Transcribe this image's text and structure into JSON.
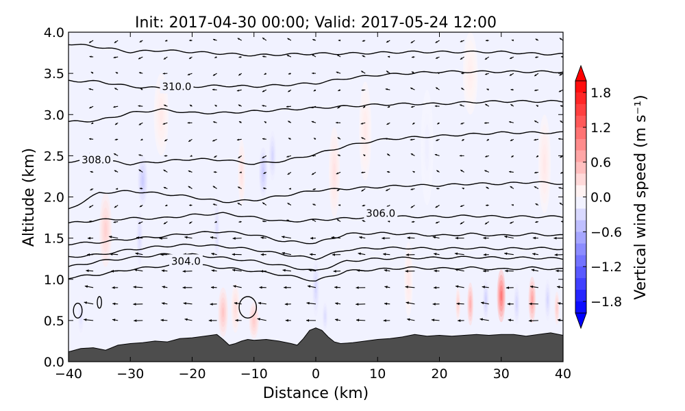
{
  "chart_data": {
    "type": "heatmap",
    "title": "Init: 2017-04-30 00:00; Valid: 2017-05-24 12:00",
    "xlabel": "Distance (km)",
    "ylabel": "Altitude (km)",
    "xlim": [
      -40,
      40
    ],
    "ylim": [
      0.0,
      4.0
    ],
    "x_ticks": [
      -40,
      -30,
      -20,
      -10,
      0,
      10,
      20,
      30,
      40
    ],
    "x_tick_labels": [
      "−40",
      "−30",
      "−20",
      "−10",
      "0",
      "10",
      "20",
      "30",
      "40"
    ],
    "y_ticks": [
      0.0,
      0.5,
      1.0,
      1.5,
      2.0,
      2.5,
      3.0,
      3.5,
      4.0
    ],
    "y_tick_labels": [
      "0.0",
      "0.5",
      "1.0",
      "1.5",
      "2.0",
      "2.5",
      "3.0",
      "3.5",
      "4.0"
    ],
    "colorbar": {
      "label": "Vertical wind speed (m s⁻¹)",
      "range": [
        -2.0,
        2.0
      ],
      "ticks": [
        -1.8,
        -1.2,
        -0.6,
        0.0,
        0.6,
        1.2,
        1.8
      ],
      "tick_labels": [
        "−1.8",
        "−1.2",
        "−0.6",
        "0.0",
        "0.6",
        "1.2",
        "1.8"
      ],
      "colormap": "bwr",
      "extend": "both"
    },
    "colors": {
      "terrain": "#4d4d4d",
      "positive": "#ff0000",
      "negative": "#0000ff",
      "zero": "#ffffff"
    },
    "terrain": {
      "x": [
        -40,
        -38,
        -36,
        -34,
        -32,
        -30,
        -28,
        -26,
        -24,
        -22,
        -20,
        -18,
        -16,
        -15,
        -14,
        -13,
        -12,
        -11,
        -10,
        -8,
        -6,
        -4,
        -3,
        -2,
        -1,
        0,
        1,
        2,
        3,
        4,
        6,
        8,
        10,
        12,
        14,
        16,
        18,
        20,
        22,
        24,
        26,
        28,
        30,
        32,
        34,
        36,
        38,
        40
      ],
      "alt": [
        0.12,
        0.16,
        0.17,
        0.14,
        0.2,
        0.22,
        0.23,
        0.25,
        0.24,
        0.28,
        0.29,
        0.31,
        0.33,
        0.27,
        0.2,
        0.22,
        0.25,
        0.27,
        0.26,
        0.27,
        0.25,
        0.22,
        0.2,
        0.28,
        0.38,
        0.41,
        0.38,
        0.3,
        0.24,
        0.22,
        0.23,
        0.25,
        0.27,
        0.28,
        0.3,
        0.33,
        0.31,
        0.32,
        0.31,
        0.32,
        0.33,
        0.32,
        0.33,
        0.33,
        0.31,
        0.33,
        0.35,
        0.32
      ]
    },
    "contour_x": [
      -40,
      -35,
      -30,
      -25,
      -20,
      -15,
      -10,
      -5,
      0,
      5,
      10,
      15,
      20,
      25,
      30,
      35,
      40
    ],
    "contours": [
      {
        "alt": [
          1.02,
          1.06,
          1.12,
          1.16,
          1.18,
          1.14,
          1.1,
          1.05,
          0.98,
          1.1,
          1.12,
          1.14,
          1.13,
          1.14,
          1.12,
          1.14,
          1.12
        ]
      },
      {
        "alt": [
          1.15,
          1.22,
          1.26,
          1.3,
          1.3,
          1.26,
          1.22,
          1.16,
          1.1,
          1.22,
          1.25,
          1.26,
          1.26,
          1.27,
          1.26,
          1.26,
          1.25
        ]
      },
      {
        "alt": [
          1.27,
          1.3,
          1.36,
          1.4,
          1.42,
          1.4,
          1.36,
          1.3,
          1.25,
          1.36,
          1.38,
          1.38,
          1.37,
          1.38,
          1.37,
          1.38,
          1.37
        ]
      },
      {
        "alt": [
          1.43,
          1.45,
          1.49,
          1.52,
          1.56,
          1.58,
          1.54,
          1.46,
          1.44,
          1.55,
          1.56,
          1.55,
          1.53,
          1.55,
          1.53,
          1.55,
          1.53
        ]
      },
      {
        "alt": [
          1.68,
          1.72,
          1.74,
          1.74,
          1.78,
          1.8,
          1.75,
          1.7,
          1.72,
          1.74,
          1.76,
          1.76,
          1.76,
          1.77,
          1.76,
          1.76,
          1.76
        ]
      },
      {
        "alt": [
          1.85,
          2.05,
          2.07,
          2.04,
          2.0,
          1.94,
          1.96,
          2.02,
          2.08,
          2.1,
          2.12,
          2.14,
          2.14,
          2.16,
          2.16,
          2.18,
          2.16
        ]
      },
      {
        "alt": [
          2.43,
          2.45,
          2.4,
          2.43,
          2.46,
          2.45,
          2.4,
          2.44,
          2.52,
          2.62,
          2.69,
          2.72,
          2.74,
          2.76,
          2.78,
          2.78,
          2.78
        ]
      },
      {
        "alt": [
          2.91,
          2.93,
          3.02,
          3.06,
          3.02,
          3.02,
          3.04,
          3.06,
          3.08,
          3.1,
          3.12,
          3.13,
          3.13,
          3.15,
          3.16,
          3.16,
          3.16
        ]
      },
      {
        "alt": [
          3.41,
          3.4,
          3.34,
          3.32,
          3.34,
          3.35,
          3.34,
          3.36,
          3.38,
          3.44,
          3.48,
          3.5,
          3.52,
          3.52,
          3.52,
          3.52,
          3.52
        ]
      },
      {
        "alt": [
          3.86,
          3.82,
          3.76,
          3.78,
          3.76,
          3.74,
          3.72,
          3.73,
          3.74,
          3.74,
          3.75,
          3.76,
          3.76,
          3.76,
          3.76,
          3.74,
          3.73
        ]
      }
    ],
    "contour_labels": [
      {
        "text": "310.0",
        "x": -22.5,
        "alt": 3.34
      },
      {
        "text": "308.0",
        "x": -35.5,
        "alt": 2.45
      },
      {
        "text": "306.0",
        "x": 10.5,
        "alt": 1.8
      },
      {
        "text": "304.0",
        "x": -21.0,
        "alt": 1.22
      }
    ],
    "vertical_wind_anomalies": [
      {
        "x": 30,
        "alt": 0.8,
        "w": 1.2,
        "sx": 0.7,
        "sy": 0.32
      },
      {
        "x": 35,
        "alt": 0.75,
        "w": 0.8,
        "sx": 0.6,
        "sy": 0.28
      },
      {
        "x": 25,
        "alt": 0.7,
        "w": 0.7,
        "sx": 0.5,
        "sy": 0.26
      },
      {
        "x": 23,
        "alt": 0.7,
        "w": 0.4,
        "sx": 0.4,
        "sy": 0.2
      },
      {
        "x": 27.5,
        "alt": 0.75,
        "w": -0.4,
        "sx": 0.5,
        "sy": 0.25
      },
      {
        "x": 32.5,
        "alt": 0.7,
        "w": -0.35,
        "sx": 0.5,
        "sy": 0.25
      },
      {
        "x": 37.5,
        "alt": 0.75,
        "w": -0.35,
        "sx": 0.5,
        "sy": 0.25
      },
      {
        "x": 39,
        "alt": 0.65,
        "w": 0.45,
        "sx": 0.4,
        "sy": 0.2
      },
      {
        "x": -15,
        "alt": 0.6,
        "w": 0.5,
        "sx": 0.8,
        "sy": 0.3
      },
      {
        "x": -13,
        "alt": 0.65,
        "w": 0.3,
        "sx": 0.7,
        "sy": 0.3
      },
      {
        "x": -10,
        "alt": 0.5,
        "w": 0.45,
        "sx": 0.8,
        "sy": 0.22
      },
      {
        "x": -34,
        "alt": 1.6,
        "w": 0.4,
        "sx": 1.0,
        "sy": 0.45
      },
      {
        "x": -28,
        "alt": 2.2,
        "w": -0.45,
        "sx": 0.8,
        "sy": 0.3
      },
      {
        "x": -28.5,
        "alt": 1.5,
        "w": -0.3,
        "sx": 0.6,
        "sy": 0.4
      },
      {
        "x": -8.5,
        "alt": 2.3,
        "w": -0.45,
        "sx": 0.7,
        "sy": 0.3
      },
      {
        "x": -7,
        "alt": 2.5,
        "w": -0.35,
        "sx": 0.6,
        "sy": 0.3
      },
      {
        "x": -16,
        "alt": 1.6,
        "w": -0.3,
        "sx": 0.5,
        "sy": 0.45
      },
      {
        "x": -12,
        "alt": 2.3,
        "w": 0.25,
        "sx": 0.6,
        "sy": 0.4
      },
      {
        "x": 0,
        "alt": 0.9,
        "w": -0.35,
        "sx": 0.6,
        "sy": 0.35
      },
      {
        "x": 1.5,
        "alt": 0.55,
        "w": -0.3,
        "sx": 0.5,
        "sy": 0.2
      },
      {
        "x": 3,
        "alt": 2.3,
        "w": 0.25,
        "sx": 0.9,
        "sy": 0.55
      },
      {
        "x": 15,
        "alt": 1.0,
        "w": 0.2,
        "sx": 0.7,
        "sy": 0.45
      },
      {
        "x": 8,
        "alt": 2.8,
        "w": 0.18,
        "sx": 1.0,
        "sy": 0.6
      },
      {
        "x": 18,
        "alt": 2.6,
        "w": -0.15,
        "sx": 1.0,
        "sy": 0.7
      },
      {
        "x": 37,
        "alt": 2.4,
        "w": 0.2,
        "sx": 1.0,
        "sy": 0.6
      },
      {
        "x": -38,
        "alt": 0.55,
        "w": -0.25,
        "sx": 0.6,
        "sy": 0.25
      },
      {
        "x": -25,
        "alt": 3.0,
        "w": 0.18,
        "sx": 1.2,
        "sy": 0.5
      },
      {
        "x": 25,
        "alt": 3.5,
        "w": 0.15,
        "sx": 1.2,
        "sy": 0.5
      }
    ],
    "closed_contours": [
      {
        "x": -38.5,
        "alt": 0.62,
        "rx": 0.7,
        "ry": 0.09
      },
      {
        "x": -35,
        "alt": 0.72,
        "rx": 0.35,
        "ry": 0.07
      },
      {
        "x": -11,
        "alt": 0.66,
        "rx": 1.4,
        "ry": 0.13
      }
    ],
    "wind_vector_grid": {
      "x_step": 4.0,
      "alt_step": 0.2,
      "x_start": -40,
      "alt_start": 0.5,
      "alt_end": 3.9,
      "strong_layer_top": 1.5
    }
  }
}
